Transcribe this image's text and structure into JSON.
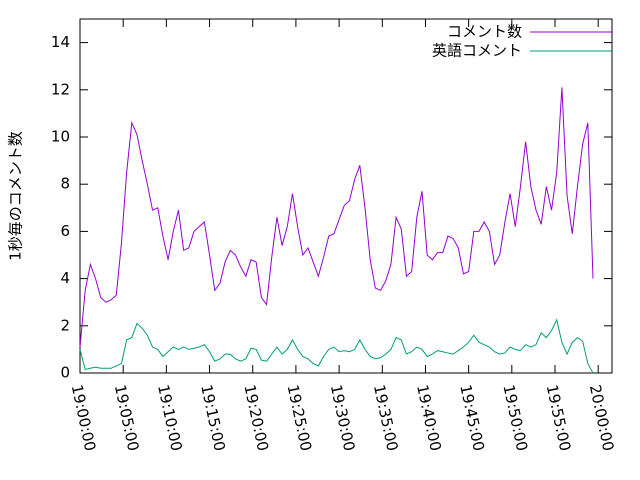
{
  "chart_data": {
    "type": "line",
    "ylabel": "1秒毎のコメント数",
    "x": [
      "19:00:00",
      "19:00:36",
      "19:01:12",
      "19:01:48",
      "19:02:24",
      "19:03:00",
      "19:03:36",
      "19:04:12",
      "19:04:48",
      "19:05:24",
      "19:06:00",
      "19:06:36",
      "19:07:12",
      "19:07:48",
      "19:08:24",
      "19:09:00",
      "19:09:36",
      "19:10:12",
      "19:10:48",
      "19:11:24",
      "19:12:00",
      "19:12:36",
      "19:13:12",
      "19:13:48",
      "19:14:24",
      "19:15:00",
      "19:15:36",
      "19:16:12",
      "19:16:48",
      "19:17:24",
      "19:18:00",
      "19:18:36",
      "19:19:12",
      "19:19:48",
      "19:20:24",
      "19:21:00",
      "19:21:36",
      "19:22:12",
      "19:22:48",
      "19:23:24",
      "19:24:00",
      "19:24:36",
      "19:25:12",
      "19:25:48",
      "19:26:24",
      "19:27:00",
      "19:27:36",
      "19:28:12",
      "19:28:48",
      "19:29:24",
      "19:30:00",
      "19:30:36",
      "19:31:12",
      "19:31:48",
      "19:32:24",
      "19:33:00",
      "19:33:36",
      "19:34:12",
      "19:34:48",
      "19:35:24",
      "19:36:00",
      "19:36:36",
      "19:37:12",
      "19:37:48",
      "19:38:24",
      "19:39:00",
      "19:39:36",
      "19:40:12",
      "19:40:48",
      "19:41:24",
      "19:42:00",
      "19:42:36",
      "19:43:12",
      "19:43:48",
      "19:44:24",
      "19:45:00",
      "19:45:36",
      "19:46:12",
      "19:46:48",
      "19:47:24",
      "19:48:00",
      "19:48:36",
      "19:49:12",
      "19:49:48",
      "19:50:24",
      "19:51:00",
      "19:51:36",
      "19:52:12",
      "19:52:48",
      "19:53:24",
      "19:54:00",
      "19:54:36",
      "19:55:12",
      "19:55:48",
      "19:56:24",
      "19:57:00",
      "19:57:36",
      "19:58:12",
      "19:58:48",
      "19:59:24"
    ],
    "series": [
      {
        "name": "コメント数",
        "color": "#9400d3",
        "values": [
          1.1,
          3.5,
          4.6,
          4.0,
          3.2,
          3.0,
          3.1,
          3.3,
          5.5,
          8.5,
          10.6,
          10.1,
          9.0,
          8.0,
          6.9,
          7.0,
          5.8,
          4.8,
          6.0,
          6.9,
          5.2,
          5.3,
          6.0,
          6.2,
          6.4,
          5.0,
          3.5,
          3.8,
          4.7,
          5.2,
          5.0,
          4.5,
          4.1,
          4.8,
          4.7,
          3.2,
          2.9,
          4.9,
          6.6,
          5.4,
          6.2,
          7.6,
          6.2,
          5.0,
          5.3,
          4.7,
          4.1,
          4.9,
          5.8,
          5.9,
          6.5,
          7.1,
          7.3,
          8.2,
          8.8,
          7.0,
          4.8,
          3.6,
          3.5,
          3.9,
          4.6,
          6.6,
          6.1,
          4.1,
          4.3,
          6.6,
          7.7,
          5.0,
          4.8,
          5.1,
          5.1,
          5.8,
          5.7,
          5.3,
          4.2,
          4.3,
          6.0,
          6.0,
          6.4,
          6.0,
          4.6,
          5.0,
          6.4,
          7.6,
          6.2,
          7.9,
          9.8,
          7.9,
          6.9,
          6.3,
          7.9,
          6.9,
          8.5,
          12.1,
          7.5,
          5.9,
          7.9,
          9.7,
          10.6,
          4.0
        ]
      },
      {
        "name": "英語コメント",
        "color": "#009e73",
        "values": [
          1.0,
          0.15,
          0.2,
          0.25,
          0.2,
          0.2,
          0.2,
          0.3,
          0.4,
          1.4,
          1.5,
          2.1,
          1.9,
          1.6,
          1.1,
          1.0,
          0.7,
          0.9,
          1.1,
          1.0,
          1.1,
          1.0,
          1.05,
          1.1,
          1.2,
          0.9,
          0.5,
          0.6,
          0.8,
          0.8,
          0.6,
          0.5,
          0.6,
          1.05,
          1.0,
          0.55,
          0.5,
          0.8,
          1.1,
          0.8,
          1.0,
          1.4,
          1.0,
          0.7,
          0.6,
          0.4,
          0.3,
          0.7,
          1.0,
          1.1,
          0.9,
          0.95,
          0.9,
          1.0,
          1.4,
          1.0,
          0.7,
          0.6,
          0.65,
          0.8,
          1.0,
          1.5,
          1.4,
          0.8,
          0.9,
          1.1,
          1.0,
          0.7,
          0.8,
          0.95,
          0.9,
          0.85,
          0.8,
          0.95,
          1.1,
          1.3,
          1.6,
          1.3,
          1.2,
          1.1,
          0.9,
          0.8,
          0.85,
          1.1,
          1.0,
          0.95,
          1.2,
          1.1,
          1.2,
          1.7,
          1.5,
          1.8,
          2.25,
          1.3,
          0.8,
          1.3,
          1.5,
          1.35,
          0.4,
          0.0
        ]
      }
    ],
    "xlim": [
      "19:00:00",
      "20:01:36"
    ],
    "xticks": [
      "19:00:00",
      "19:05:00",
      "19:10:00",
      "19:15:00",
      "19:20:00",
      "19:25:00",
      "19:30:00",
      "19:35:00",
      "19:40:00",
      "19:45:00",
      "19:50:00",
      "19:55:00",
      "20:00:00"
    ],
    "ylim": [
      0,
      15
    ],
    "yticks": [
      0,
      2,
      4,
      6,
      8,
      10,
      12,
      14
    ],
    "grid": false,
    "legend": "top-right"
  }
}
